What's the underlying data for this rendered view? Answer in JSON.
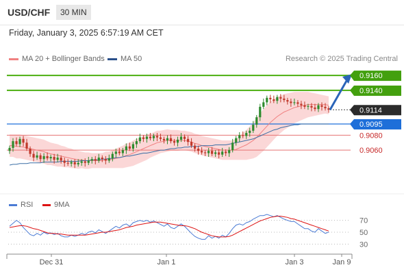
{
  "header": {
    "symbol": "USD/CHF",
    "interval": "30 MIN",
    "datetime": "Friday, January 3, 2025 6:57:19 AM CET"
  },
  "legend": {
    "ma20_label": "MA 20 + Bollinger Bands",
    "ma50_label": "MA 50",
    "rsi_label": "RSI",
    "ma9_label": "9MA",
    "credit": "Research © 2025 Trading Central"
  },
  "colors": {
    "bull": "#2e8b2e",
    "bear": "#c0392b",
    "band": "#f9c9c9",
    "ma20": "#f08080",
    "ma50": "#3a6ea5",
    "resistance": "#4caf10",
    "support": "#e57373",
    "pivot": "#1e6fd9",
    "rsi": "#4a7bd4",
    "rsi_ma": "#dd1111"
  },
  "chart_data": [
    {
      "type": "candlestick",
      "x_tick_labels": [
        "Dec 31",
        "Jan 1",
        "Jan 3",
        "Jan 9"
      ],
      "ylim": [
        0.9007,
        0.9172
      ],
      "current_price": 0.9114,
      "levels": [
        {
          "value": 0.916,
          "label": "0.9160",
          "kind": "resistance"
        },
        {
          "value": 0.914,
          "label": "0.9140",
          "kind": "resistance"
        },
        {
          "value": 0.9114,
          "label": "0.9114",
          "kind": "current"
        },
        {
          "value": 0.9095,
          "label": "0.9095",
          "kind": "pivot"
        },
        {
          "value": 0.908,
          "label": "0.9080",
          "kind": "support"
        },
        {
          "value": 0.906,
          "label": "0.9060",
          "kind": "support"
        }
      ],
      "target_arrow": {
        "from_value": 0.9114,
        "to_value": 0.916
      },
      "closes": [
        0.9063,
        0.9072,
        0.9068,
        0.9075,
        0.907,
        0.9062,
        0.9055,
        0.905,
        0.9053,
        0.9048,
        0.9052,
        0.9049,
        0.9051,
        0.9047,
        0.905,
        0.9046,
        0.9043,
        0.9042,
        0.9044,
        0.9041,
        0.9043,
        0.9045,
        0.9043,
        0.9046,
        0.9048,
        0.9046,
        0.905,
        0.9048,
        0.9046,
        0.9049,
        0.9055,
        0.9058,
        0.9056,
        0.906,
        0.9065,
        0.9062,
        0.9068,
        0.9072,
        0.9077,
        0.9075,
        0.9078,
        0.9076,
        0.9079,
        0.9077,
        0.9075,
        0.9073,
        0.9076,
        0.9072,
        0.907,
        0.9074,
        0.9078,
        0.9075,
        0.9071,
        0.9066,
        0.9062,
        0.9059,
        0.9057,
        0.9056,
        0.9059,
        0.9055,
        0.9057,
        0.9054,
        0.9058,
        0.9056,
        0.906,
        0.907,
        0.9076,
        0.908,
        0.9079,
        0.9083,
        0.9086,
        0.9094,
        0.9104,
        0.9118,
        0.9124,
        0.913,
        0.9128,
        0.9126,
        0.9131,
        0.9129,
        0.9127,
        0.9125,
        0.9123,
        0.9124,
        0.9122,
        0.912,
        0.9118,
        0.9119,
        0.9117,
        0.9115,
        0.912,
        0.9118,
        0.9116,
        0.9114
      ],
      "ma20": [
        0.9066,
        0.9066,
        0.9065,
        0.9065,
        0.9064,
        0.9063,
        0.9062,
        0.9061,
        0.906,
        0.9059,
        0.9058,
        0.9056,
        0.9055,
        0.9054,
        0.9053,
        0.9052,
        0.9051,
        0.905,
        0.9049,
        0.9048,
        0.9047,
        0.9047,
        0.9046,
        0.9046,
        0.9046,
        0.9046,
        0.9046,
        0.9046,
        0.9047,
        0.9047,
        0.9048,
        0.9049,
        0.905,
        0.9051,
        0.9053,
        0.9054,
        0.9056,
        0.9058,
        0.906,
        0.9062,
        0.9064,
        0.9066,
        0.9068,
        0.907,
        0.9071,
        0.9072,
        0.9073,
        0.9073,
        0.9073,
        0.9073,
        0.9073,
        0.9073,
        0.9072,
        0.9071,
        0.9069,
        0.9068,
        0.9066,
        0.9065,
        0.9064,
        0.9063,
        0.9062,
        0.9061,
        0.906,
        0.906,
        0.906,
        0.906,
        0.9061,
        0.9063,
        0.9065,
        0.9067,
        0.907,
        0.9073,
        0.9077,
        0.9082,
        0.9087,
        0.9092,
        0.9097,
        0.9101,
        0.9105,
        0.9108,
        0.9111,
        0.9113,
        0.9115,
        0.9117,
        0.9118,
        0.9119,
        0.912,
        0.9121,
        0.9121,
        0.9121,
        0.9121,
        0.9121,
        0.9121,
        0.912
      ],
      "ma50": [
        0.904,
        0.9041,
        0.9041,
        0.9042,
        0.9042,
        0.9042,
        0.9043,
        0.9043,
        0.9043,
        0.9043,
        0.9044,
        0.9044,
        0.9044,
        0.9044,
        0.9044,
        0.9045,
        0.9045,
        0.9045,
        0.9045,
        0.9045,
        0.9045,
        0.9046,
        0.9046,
        0.9046,
        0.9047,
        0.9047,
        0.9047,
        0.9048,
        0.9048,
        0.9049,
        0.9049,
        0.905,
        0.905,
        0.9051,
        0.9052,
        0.9052,
        0.9053,
        0.9054,
        0.9055,
        0.9056,
        0.9056,
        0.9057,
        0.9058,
        0.9059,
        0.906,
        0.906,
        0.9061,
        0.9062,
        0.9062,
        0.9063,
        0.9063,
        0.9064,
        0.9064,
        0.9065,
        0.9065,
        0.9065,
        0.9066,
        0.9066,
        0.9066,
        0.9066,
        0.9067,
        0.9067,
        0.9067,
        0.9067,
        0.9068,
        0.9069,
        0.907,
        0.9071,
        0.9072,
        0.9073,
        0.9074,
        0.9075,
        0.9077,
        0.9079,
        0.9081,
        0.9083,
        0.9085,
        0.9087,
        0.9088,
        0.909,
        0.9091,
        0.9092,
        0.9093,
        0.9094,
        0.9094,
        0.9095,
        0.9095,
        0.9095,
        0.9095,
        0.9095,
        0.9095,
        0.9095,
        0.9095,
        0.9095
      ],
      "band_halfwidth": [
        0.0015,
        0.0015,
        0.0016,
        0.0016,
        0.0016,
        0.0016,
        0.0016,
        0.0016,
        0.0016,
        0.0016,
        0.0016,
        0.0016,
        0.0015,
        0.0015,
        0.0015,
        0.0014,
        0.0014,
        0.0013,
        0.0013,
        0.0012,
        0.0012,
        0.0011,
        0.0011,
        0.0011,
        0.001,
        0.001,
        0.001,
        0.001,
        0.0011,
        0.0011,
        0.0012,
        0.0013,
        0.0014,
        0.0015,
        0.0016,
        0.0016,
        0.0017,
        0.0017,
        0.0017,
        0.0017,
        0.0017,
        0.0016,
        0.0016,
        0.0016,
        0.0015,
        0.0015,
        0.0015,
        0.0014,
        0.0014,
        0.0014,
        0.0013,
        0.0013,
        0.0013,
        0.0013,
        0.0013,
        0.0013,
        0.0013,
        0.0013,
        0.0013,
        0.0013,
        0.0013,
        0.0013,
        0.0013,
        0.0013,
        0.0013,
        0.0013,
        0.0014,
        0.0016,
        0.0018,
        0.002,
        0.0022,
        0.0024,
        0.0026,
        0.0027,
        0.0028,
        0.0028,
        0.0028,
        0.0027,
        0.0026,
        0.0025,
        0.0024,
        0.0023,
        0.0022,
        0.0021,
        0.002,
        0.0019,
        0.0018,
        0.0017,
        0.0016,
        0.0015,
        0.0014,
        0.0013,
        0.0012,
        0.0012
      ]
    },
    {
      "type": "line",
      "name": "RSI",
      "yticks": [
        70,
        50,
        30
      ],
      "ylim": [
        20,
        80
      ],
      "values": [
        60,
        65,
        70,
        66,
        58,
        52,
        46,
        44,
        48,
        45,
        50,
        47,
        49,
        46,
        48,
        44,
        42,
        42,
        45,
        43,
        45,
        48,
        46,
        50,
        52,
        49,
        54,
        51,
        48,
        52,
        56,
        60,
        57,
        62,
        64,
        60,
        66,
        68,
        70,
        68,
        70,
        67,
        69,
        66,
        63,
        60,
        64,
        58,
        56,
        60,
        64,
        60,
        54,
        48,
        43,
        40,
        38,
        38,
        44,
        40,
        43,
        40,
        45,
        42,
        48,
        56,
        62,
        64,
        62,
        66,
        68,
        72,
        75,
        78,
        78,
        80,
        78,
        76,
        78,
        75,
        72,
        70,
        68,
        68,
        64,
        60,
        56,
        56,
        52,
        50,
        56,
        52,
        48,
        50
      ],
      "ma9": [
        58,
        59,
        60,
        61,
        61,
        60,
        58,
        56,
        55,
        53,
        51,
        49,
        48,
        48,
        47,
        47,
        46,
        45,
        45,
        45,
        45,
        45,
        45,
        46,
        47,
        48,
        49,
        50,
        50,
        51,
        52,
        53,
        54,
        56,
        58,
        59,
        60,
        62,
        63,
        64,
        65,
        66,
        67,
        67,
        67,
        66,
        65,
        64,
        63,
        62,
        61,
        61,
        60,
        58,
        56,
        53,
        50,
        48,
        46,
        44,
        43,
        42,
        42,
        42,
        43,
        45,
        48,
        51,
        54,
        57,
        60,
        63,
        66,
        69,
        71,
        73,
        75,
        76,
        77,
        77,
        76,
        75,
        73,
        72,
        70,
        68,
        66,
        64,
        62,
        60,
        58,
        56,
        54,
        52
      ]
    }
  ]
}
